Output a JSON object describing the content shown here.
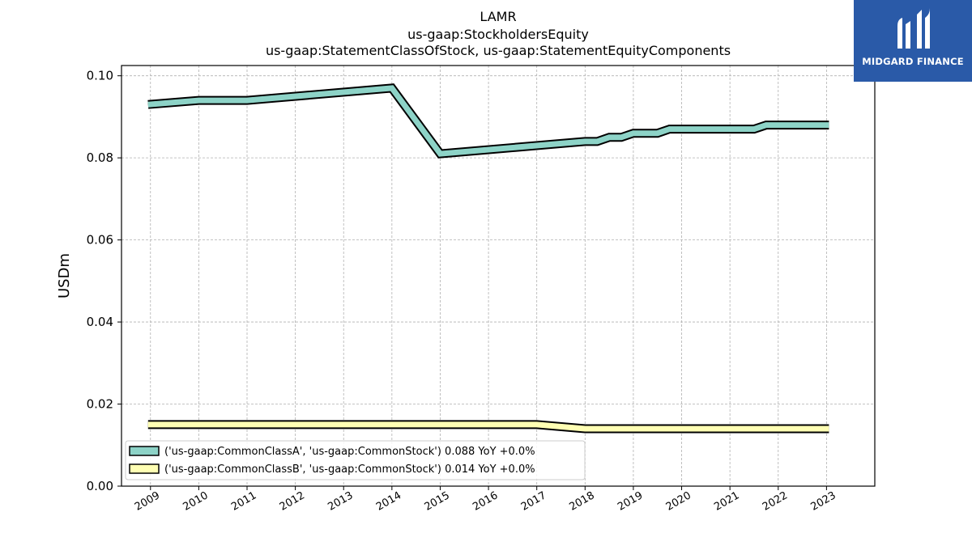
{
  "chart_data": {
    "type": "line",
    "title_lines": [
      "LAMR",
      "us-gaap:StockholdersEquity",
      "us-gaap:StatementClassOfStock, us-gaap:StatementEquityComponents"
    ],
    "xlabel": "",
    "ylabel": "USDm",
    "xlim": [
      2008.4,
      2024.0
    ],
    "ylim": [
      0.0,
      0.1025
    ],
    "x_ticks": [
      2009,
      2010,
      2011,
      2012,
      2013,
      2014,
      2015,
      2016,
      2017,
      2018,
      2019,
      2020,
      2021,
      2022,
      2023
    ],
    "x_tick_labels": [
      "2009",
      "2010",
      "2011",
      "2012",
      "2013",
      "2014",
      "2015",
      "2016",
      "2017",
      "2018",
      "2019",
      "2020",
      "2021",
      "2022",
      "2023"
    ],
    "y_ticks": [
      0.0,
      0.02,
      0.04,
      0.06,
      0.08,
      0.1
    ],
    "y_tick_labels": [
      "0.00",
      "0.02",
      "0.04",
      "0.06",
      "0.08",
      "0.10"
    ],
    "grid": true,
    "legend_position": "lower-left",
    "series": [
      {
        "name": "('us-gaap:CommonClassA', 'us-gaap:CommonStock') 0.088 YoY +0.0%",
        "color": "#8dd3c7",
        "x": [
          2008.95,
          2010.0,
          2011.0,
          2014.0,
          2015.0,
          2018.0,
          2018.25,
          2018.5,
          2018.75,
          2019.0,
          2019.5,
          2019.75,
          2020.0,
          2021.0,
          2021.5,
          2021.75,
          2022.0,
          2023.05
        ],
        "y": [
          0.093,
          0.094,
          0.094,
          0.097,
          0.081,
          0.084,
          0.084,
          0.085,
          0.085,
          0.086,
          0.086,
          0.087,
          0.087,
          0.087,
          0.087,
          0.088,
          0.088,
          0.088
        ]
      },
      {
        "name": "('us-gaap:CommonClassB', 'us-gaap:CommonStock') 0.014 YoY +0.0%",
        "color": "#ffffb3",
        "x": [
          2008.95,
          2017.0,
          2018.0,
          2023.05
        ],
        "y": [
          0.015,
          0.015,
          0.014,
          0.014
        ]
      }
    ]
  },
  "logo": {
    "text": "MIDGARD FINANCE",
    "background": "#2a5aa8"
  }
}
